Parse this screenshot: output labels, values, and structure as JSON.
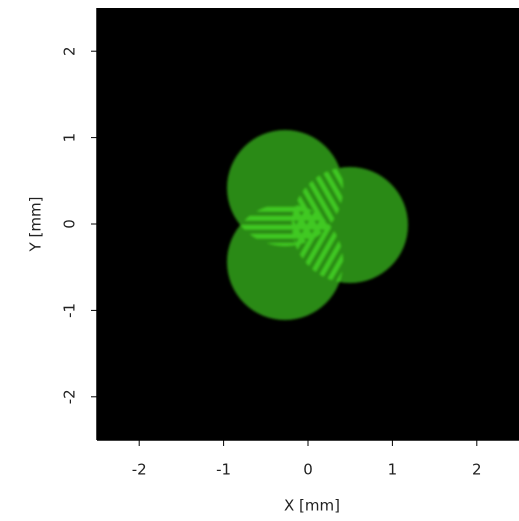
{
  "chart_data": {
    "type": "image",
    "x_label": "X [mm]",
    "y_label": "Y [mm]",
    "xlim": [
      -2.5,
      2.5
    ],
    "ylim": [
      -2.5,
      2.5
    ],
    "xticks": [
      -2,
      -1,
      0,
      1,
      2
    ],
    "yticks": [
      -2,
      -1,
      0,
      1,
      2
    ],
    "background": "#000000",
    "color": "#2a8a14"
  }
}
